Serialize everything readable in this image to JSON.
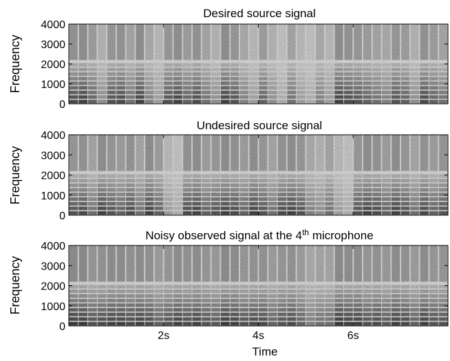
{
  "chart_data": [
    {
      "type": "heatmap",
      "title": "Desired source signal",
      "xlabel": "",
      "ylabel": "Frequency",
      "ylim": [
        0,
        4000
      ],
      "yticks": [
        0,
        1000,
        2000,
        3000,
        4000
      ],
      "xlim": [
        0,
        8
      ],
      "xticks": [
        2,
        4,
        6
      ],
      "xtick_labels": [
        "",
        "",
        ""
      ],
      "colormap": "grayscale",
      "activity": [
        0.85,
        0.9,
        0.7,
        0.4,
        0.8,
        0.85,
        0.6,
        0.9,
        0.5,
        0.3,
        0.8,
        0.9,
        0.7,
        0.85,
        0.6,
        0.4,
        0.9,
        0.8,
        0.5,
        0.3,
        0.7,
        0.4,
        0.2,
        0.6,
        0.3,
        0.2,
        0.5,
        0.3,
        0.9,
        0.85,
        0.8,
        0.7,
        0.6,
        0.5,
        0.8,
        0.7,
        0.4,
        0.85,
        0.7,
        0.6
      ]
    },
    {
      "type": "heatmap",
      "title": "Undesired source signal",
      "xlabel": "",
      "ylabel": "Frequency",
      "ylim": [
        0,
        4000
      ],
      "yticks": [
        0,
        1000,
        2000,
        3000,
        4000
      ],
      "xlim": [
        0,
        8
      ],
      "xticks": [
        2,
        4,
        6
      ],
      "xtick_labels": [
        "",
        "",
        ""
      ],
      "colormap": "grayscale",
      "activity": [
        0.8,
        0.85,
        0.6,
        0.9,
        0.8,
        0.7,
        0.85,
        0.6,
        0.9,
        0.7,
        0.3,
        0.2,
        0.85,
        0.9,
        0.7,
        0.8,
        0.9,
        0.85,
        0.7,
        0.9,
        0.8,
        0.6,
        0.85,
        0.9,
        0.8,
        0.5,
        0.4,
        0.6,
        0.3,
        0.2,
        0.8,
        0.9,
        0.85,
        0.7,
        0.9,
        0.8,
        0.6,
        0.85,
        0.7,
        0.8
      ]
    },
    {
      "type": "heatmap",
      "title_prefix": "Noisy observed signal at the 4",
      "title_sup": "th",
      "title_suffix": " microphone",
      "xlabel": "Time",
      "ylabel": "Frequency",
      "ylim": [
        0,
        4000
      ],
      "yticks": [
        0,
        1000,
        2000,
        3000,
        4000
      ],
      "xlim": [
        0,
        8
      ],
      "xticks": [
        2,
        4,
        6
      ],
      "xtick_labels": [
        "2s",
        "4s",
        "6s"
      ],
      "colormap": "grayscale",
      "activity": [
        0.95,
        0.95,
        0.8,
        0.85,
        0.9,
        0.9,
        0.85,
        0.9,
        0.85,
        0.7,
        0.8,
        0.9,
        0.85,
        0.9,
        0.8,
        0.75,
        0.95,
        0.9,
        0.8,
        0.85,
        0.85,
        0.7,
        0.8,
        0.85,
        0.7,
        0.5,
        0.6,
        0.6,
        0.95,
        0.9,
        0.9,
        0.8,
        0.85,
        0.75,
        0.9,
        0.85,
        0.7,
        0.9,
        0.8,
        0.8
      ]
    }
  ]
}
